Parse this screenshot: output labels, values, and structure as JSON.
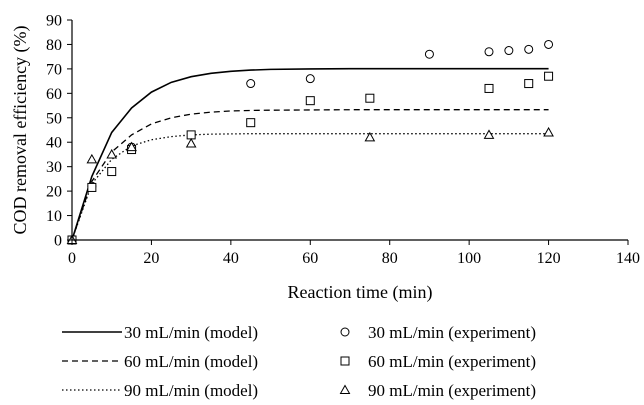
{
  "chart_data": {
    "type": "scatter",
    "title": "",
    "xlabel": "Reaction time (min)",
    "ylabel": "COD removal efficiency (%)",
    "xlim": [
      0,
      140
    ],
    "ylim": [
      0,
      90
    ],
    "xticks": [
      0,
      20,
      40,
      60,
      80,
      100,
      120,
      140
    ],
    "yticks": [
      0,
      10,
      20,
      30,
      40,
      50,
      60,
      70,
      80,
      90
    ],
    "grid": false,
    "legend_position": "bottom",
    "series": [
      {
        "name": "30 mL/min (model)",
        "kind": "line",
        "style": "solid",
        "x": [
          0,
          5,
          10,
          15,
          20,
          25,
          30,
          35,
          40,
          45,
          50,
          60,
          70,
          80,
          90,
          100,
          110,
          120
        ],
        "y": [
          0,
          26,
          44,
          54,
          60.5,
          64.5,
          66.8,
          68.2,
          69.0,
          69.5,
          69.8,
          70.0,
          70.1,
          70.1,
          70.1,
          70.1,
          70.1,
          70.1
        ]
      },
      {
        "name": "60 mL/min (model)",
        "kind": "line",
        "style": "dashed",
        "x": [
          0,
          5,
          10,
          15,
          20,
          25,
          30,
          35,
          40,
          45,
          50,
          60,
          70,
          80,
          90,
          100,
          110,
          120
        ],
        "y": [
          0,
          24,
          36,
          43,
          47.5,
          50,
          51.5,
          52.3,
          52.8,
          53.0,
          53.1,
          53.2,
          53.3,
          53.3,
          53.3,
          53.3,
          53.3,
          53.3
        ]
      },
      {
        "name": "90 mL/min (model)",
        "kind": "line",
        "style": "dotted",
        "x": [
          0,
          5,
          10,
          15,
          20,
          25,
          30,
          35,
          40,
          45,
          50,
          60,
          70,
          80,
          90,
          100,
          110,
          120
        ],
        "y": [
          0,
          23,
          33,
          38.5,
          41,
          42.3,
          43.0,
          43.3,
          43.4,
          43.5,
          43.5,
          43.5,
          43.5,
          43.5,
          43.5,
          43.5,
          43.5,
          43.5
        ]
      },
      {
        "name": "30 mL/min (experiment)",
        "kind": "points",
        "marker": "circle",
        "x": [
          0,
          5,
          15,
          45,
          60,
          90,
          105,
          110,
          115,
          120
        ],
        "y": [
          0,
          22,
          38,
          64,
          66,
          76,
          77,
          77.5,
          78,
          80
        ]
      },
      {
        "name": "60 mL/min (experiment)",
        "kind": "points",
        "marker": "square",
        "x": [
          0,
          5,
          10,
          15,
          30,
          45,
          60,
          75,
          105,
          115,
          120
        ],
        "y": [
          0,
          21.5,
          28,
          37,
          43,
          48,
          57,
          58,
          62,
          64,
          67
        ]
      },
      {
        "name": "90 mL/min (experiment)",
        "kind": "points",
        "marker": "triangle",
        "x": [
          0,
          5,
          10,
          15,
          30,
          75,
          105,
          120
        ],
        "y": [
          0,
          33,
          35,
          38,
          39.5,
          42,
          43,
          44
        ]
      }
    ]
  }
}
